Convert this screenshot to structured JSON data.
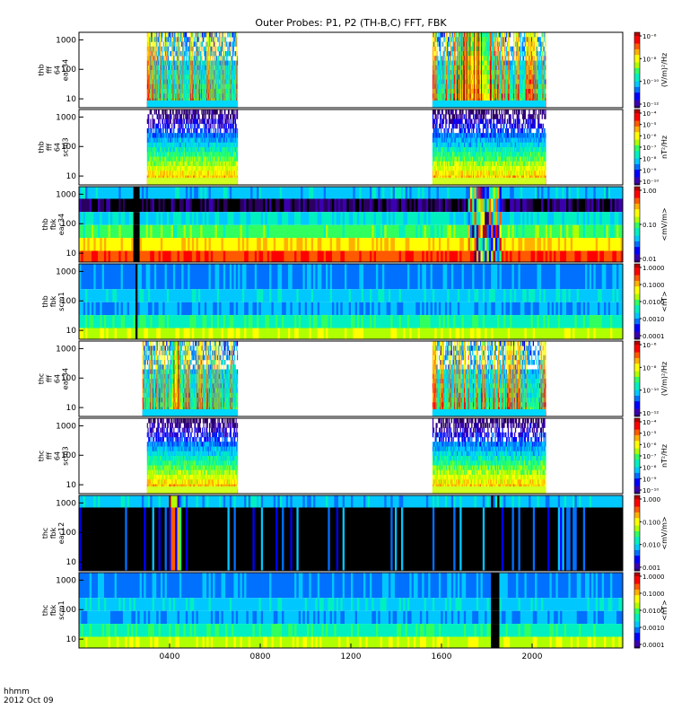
{
  "chart_data": {
    "type": "heatmap",
    "title": "Outer Probes: P1, P2 (TH-B,C) FFT, FBK",
    "x_axis": {
      "label": "hhmm",
      "date_label": "2012 Oct 09",
      "tick_labels": [
        "0400",
        "0800",
        "1200",
        "1600",
        "2000"
      ],
      "tick_hours": [
        4,
        8,
        12,
        16,
        20
      ],
      "range_hours": [
        0,
        24
      ]
    },
    "y_axis_tick_labels": [
      "10",
      "100",
      "1000"
    ],
    "panels": [
      {
        "id": "thb-fff-eac34",
        "label_lines": [
          "thb",
          "fff",
          "64",
          "eac34"
        ],
        "kind": "fff",
        "scale": "electric",
        "colorbar_ticks": [
          "10⁻⁶",
          "10⁻⁸",
          "10⁻¹⁰",
          "10⁻¹²"
        ],
        "colorbar_label": "(V/m)²/Hz",
        "active_hours": [
          [
            3,
            7
          ],
          [
            15.6,
            20.6
          ]
        ],
        "enhancements": [
          {
            "hour": 17.5,
            "width": 2.2
          }
        ]
      },
      {
        "id": "thb-fff-scm3",
        "label_lines": [
          "thb",
          "fff",
          "64",
          "scm3"
        ],
        "kind": "fff",
        "scale": "magnetic",
        "colorbar_ticks": [
          "10⁻⁴",
          "10⁻⁵",
          "10⁻⁶",
          "10⁻⁷",
          "10⁻⁸",
          "10⁻⁹",
          "10⁻¹⁰"
        ],
        "colorbar_label": "nT²/Hz",
        "active_hours": [
          [
            3,
            7
          ],
          [
            15.6,
            20.6
          ]
        ],
        "enhancements": []
      },
      {
        "id": "thb-fbk-eac34",
        "label_lines": [
          "thb",
          "fbk",
          "eac34"
        ],
        "kind": "fbk_e",
        "colorbar_ticks": [
          "1.00",
          "0.10",
          "0.01"
        ],
        "colorbar_label": "<mV/m>",
        "dropouts_hours": [
          2.5,
          2.6
        ],
        "disturbed_hours": [
          [
            17.2,
            18.6
          ]
        ]
      },
      {
        "id": "thb-fbk-scm1",
        "label_lines": [
          "thb",
          "fbk",
          "scm1"
        ],
        "kind": "fbk_b",
        "colorbar_ticks": [
          "1.0000",
          "0.1000",
          "0.0100",
          "0.0010",
          "0.0001"
        ],
        "colorbar_label": "<nT>",
        "dropouts_hours": [
          2.55
        ],
        "disturbed_hours": []
      },
      {
        "id": "thc-fff-eac34",
        "label_lines": [
          "thc",
          "fff",
          "64",
          "eac34"
        ],
        "kind": "fff",
        "scale": "electric",
        "colorbar_ticks": [
          "10⁻⁶",
          "10⁻⁸",
          "10⁻¹⁰",
          "10⁻¹²"
        ],
        "colorbar_label": "(V/m)²/Hz",
        "active_hours": [
          [
            2.8,
            7
          ],
          [
            15.6,
            20.6
          ]
        ],
        "enhancements": [
          {
            "hour": 4.3,
            "width": 0.6
          }
        ]
      },
      {
        "id": "thc-fff-scm3",
        "label_lines": [
          "thc",
          "fff",
          "64",
          "scm3"
        ],
        "kind": "fff",
        "scale": "magnetic",
        "colorbar_ticks": [
          "10⁻⁴",
          "10⁻⁵",
          "10⁻⁶",
          "10⁻⁷",
          "10⁻⁸",
          "10⁻⁹",
          "10⁻¹⁰"
        ],
        "colorbar_label": "nT²/Hz",
        "active_hours": [
          [
            3,
            7
          ],
          [
            15.6,
            20.6
          ]
        ],
        "enhancements": []
      },
      {
        "id": "thc-fbk-eac12",
        "label_lines": [
          "thc",
          "fbk",
          "eac12"
        ],
        "kind": "fbk_e2",
        "colorbar_ticks": [
          "1.000",
          "0.100",
          "0.010",
          "0.001"
        ],
        "colorbar_label": "<mV/m>",
        "dropouts_hours": [
          18.2,
          18.5
        ],
        "disturbed_hours": [
          [
            4.0,
            4.5
          ]
        ]
      },
      {
        "id": "thc-fbk-scm1",
        "label_lines": [
          "thc",
          "fbk",
          "scm1"
        ],
        "kind": "fbk_b",
        "colorbar_ticks": [
          "1.0000",
          "0.1000",
          "0.0100",
          "0.0010",
          "0.0001"
        ],
        "colorbar_label": "<nT>",
        "dropouts_hours": [
          18.2,
          18.3,
          18.4,
          18.5
        ],
        "disturbed_hours": []
      }
    ],
    "colormap": [
      "#2a0060",
      "#3a00b0",
      "#0000ff",
      "#0070ff",
      "#00c8ff",
      "#00f0c0",
      "#30ff60",
      "#b0ff00",
      "#ffff00",
      "#ffb000",
      "#ff5a00",
      "#ff0000",
      "#b00000"
    ]
  }
}
